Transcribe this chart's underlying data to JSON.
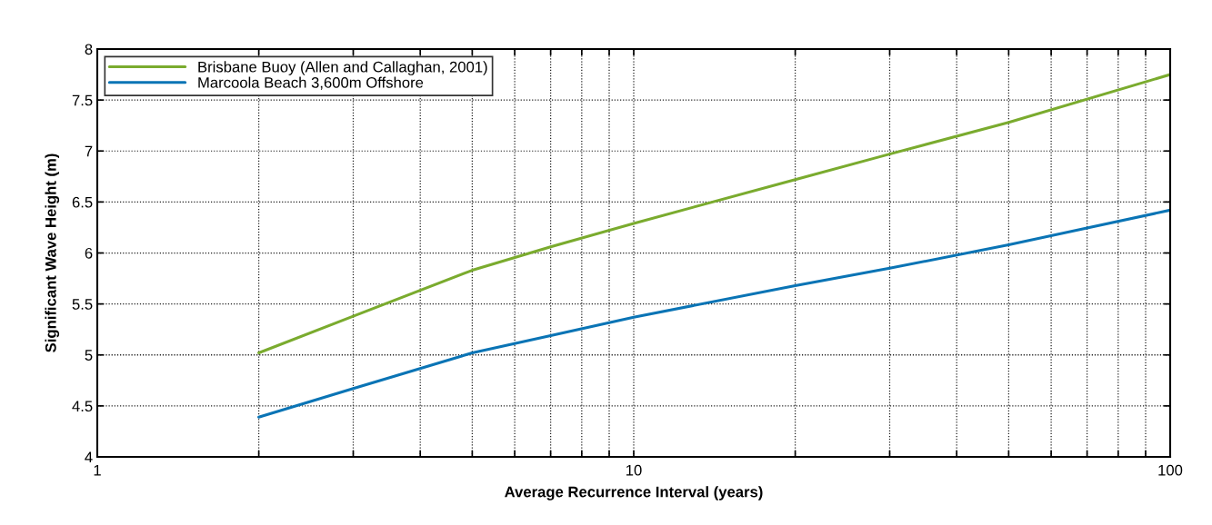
{
  "chart_data": {
    "type": "line",
    "xlabel": "Average Recurrence Interval (years)",
    "ylabel": "Significant Wave Height (m)",
    "log": "x",
    "xlim": [
      1,
      100
    ],
    "ylim": [
      4,
      8
    ],
    "xticks": [
      1,
      {
        "value": 2,
        "label": null
      },
      {
        "value": 3,
        "label": null
      },
      {
        "value": 4,
        "label": null
      },
      {
        "value": 5,
        "label": null
      },
      {
        "value": 6,
        "label": null
      },
      {
        "value": 7,
        "label": null
      },
      {
        "value": 8,
        "label": null
      },
      {
        "value": 9,
        "label": null
      },
      10,
      {
        "value": 20,
        "label": null
      },
      {
        "value": 30,
        "label": null
      },
      {
        "value": 40,
        "label": null
      },
      {
        "value": 50,
        "label": null
      },
      {
        "value": 60,
        "label": null
      },
      {
        "value": 70,
        "label": null
      },
      {
        "value": 80,
        "label": null
      },
      {
        "value": 90,
        "label": null
      },
      100
    ],
    "yticks": [
      4,
      4.5,
      5,
      5.5,
      6,
      6.5,
      7,
      7.5,
      8
    ],
    "grid": true,
    "legend": "top left",
    "line_style": "solid",
    "series": [
      {
        "name": "Brisbane Buoy (Allen and Callaghan, 2001)",
        "color": "#7aab2e",
        "x": [
          2,
          3,
          5,
          7,
          10,
          20,
          30,
          50,
          100
        ],
        "values": [
          5.02,
          5.38,
          5.83,
          6.06,
          6.29,
          6.72,
          6.97,
          7.28,
          7.75
        ]
      },
      {
        "name": "Marcoola Beach 3,600m Offshore",
        "color": "#0a74b5",
        "x": [
          2,
          3,
          5,
          7,
          10,
          20,
          30,
          50,
          100
        ],
        "values": [
          4.39,
          4.67,
          5.02,
          5.19,
          5.37,
          5.68,
          5.85,
          6.08,
          6.42
        ]
      }
    ]
  }
}
